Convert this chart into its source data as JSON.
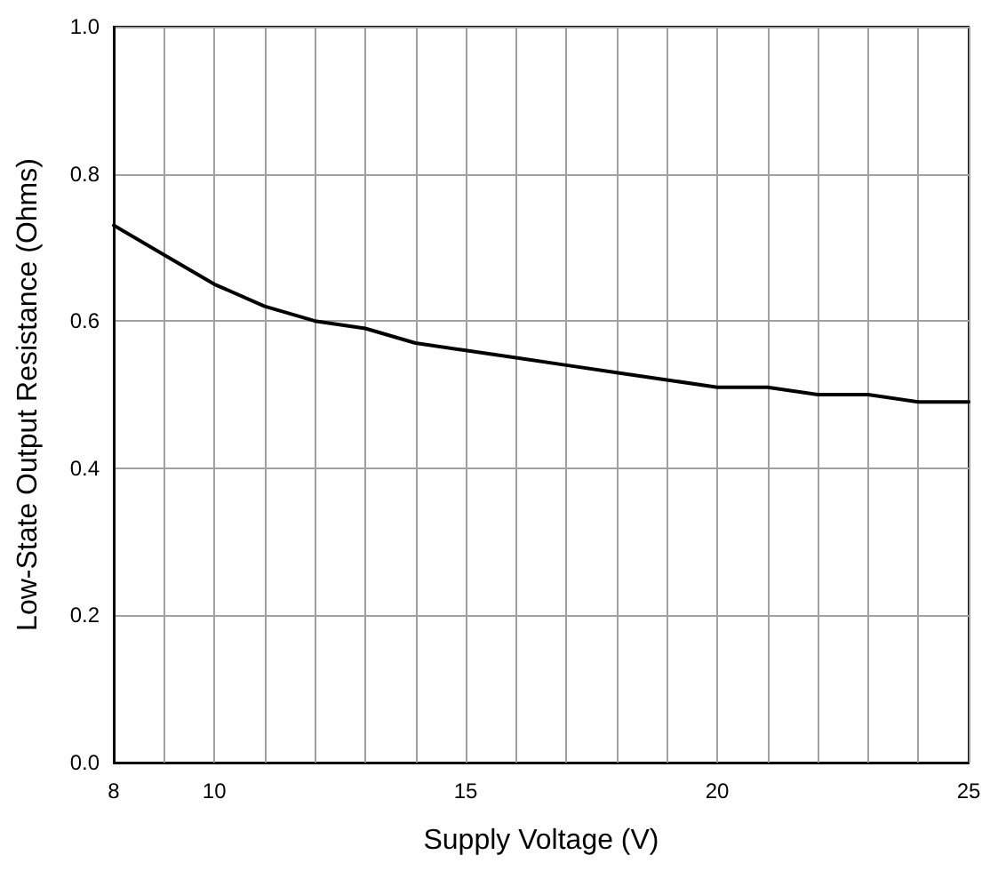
{
  "chart_data": {
    "type": "line",
    "xlabel": "Supply Voltage (V)",
    "ylabel": "Low-State Output Resistance (Ohms)",
    "x": [
      8,
      9,
      10,
      11,
      12,
      13,
      14,
      15,
      16,
      17,
      18,
      19,
      20,
      21,
      22,
      23,
      24,
      25
    ],
    "series": [
      {
        "color": "#000000",
        "values": [
          0.73,
          0.69,
          0.65,
          0.62,
          0.6,
          0.59,
          0.57,
          0.56,
          0.55,
          0.54,
          0.53,
          0.52,
          0.51,
          0.51,
          0.5,
          0.5,
          0.49,
          0.49
        ]
      }
    ],
    "xlim": [
      8,
      25
    ],
    "ylim": [
      0,
      1
    ],
    "xticks": [
      8,
      {
        "value": 9,
        "label": null
      },
      10,
      {
        "value": 11,
        "label": null
      },
      {
        "value": 12,
        "label": null
      },
      {
        "value": 13,
        "label": null
      },
      {
        "value": 14,
        "label": null
      },
      15,
      {
        "value": 16,
        "label": null
      },
      {
        "value": 17,
        "label": null
      },
      {
        "value": 18,
        "label": null
      },
      {
        "value": 19,
        "label": null
      },
      20,
      {
        "value": 21,
        "label": null
      },
      {
        "value": 22,
        "label": null
      },
      {
        "value": 23,
        "label": null
      },
      {
        "value": 24,
        "label": null
      },
      25
    ],
    "yticks": [
      {
        "value": 0,
        "label": "0.0"
      },
      {
        "value": 0.2,
        "label": "0.2"
      },
      {
        "value": 0.4,
        "label": "0.4"
      },
      {
        "value": 0.6,
        "label": "0.6"
      },
      {
        "value": 0.8,
        "label": "0.8"
      },
      {
        "value": 1,
        "label": "1.0"
      }
    ],
    "grid": true,
    "marker": "none",
    "line_style": "solid"
  }
}
